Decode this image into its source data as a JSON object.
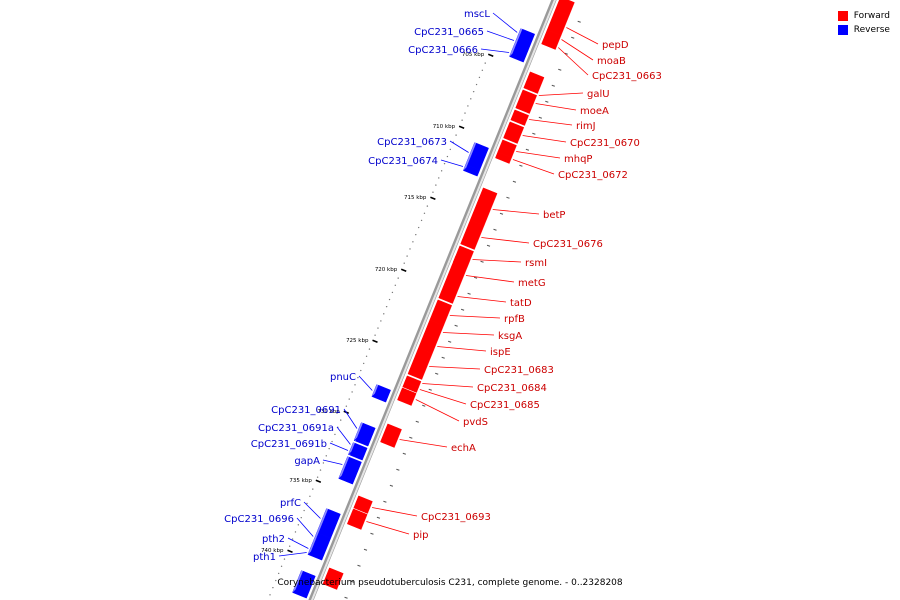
{
  "legend": {
    "forward": {
      "label": "Forward",
      "color": "#ff0000"
    },
    "reverse": {
      "label": "Reverse",
      "color": "#0000ff"
    }
  },
  "caption": "Corynebacterium pseudotuberculosis C231, complete genome. - 0..2328208",
  "ticks": [
    {
      "label": "705 kbp",
      "kbp": 705
    },
    {
      "label": "710 kbp",
      "kbp": 710
    },
    {
      "label": "715 kbp",
      "kbp": 715
    },
    {
      "label": "720 kbp",
      "kbp": 720
    },
    {
      "label": "725 kbp",
      "kbp": 725
    },
    {
      "label": "730 kbp",
      "kbp": 730
    },
    {
      "label": "735 kbp",
      "kbp": 735
    },
    {
      "label": "740 kbp",
      "kbp": 740
    }
  ],
  "forward_genes": [
    {
      "name": "pepD"
    },
    {
      "name": "moaB"
    },
    {
      "name": "CpC231_0663"
    },
    {
      "name": "galU"
    },
    {
      "name": "moeA"
    },
    {
      "name": "rimJ"
    },
    {
      "name": "CpC231_0670"
    },
    {
      "name": "mhqP"
    },
    {
      "name": "CpC231_0672"
    },
    {
      "name": "betP"
    },
    {
      "name": "CpC231_0676"
    },
    {
      "name": "rsmI"
    },
    {
      "name": "metG"
    },
    {
      "name": "tatD"
    },
    {
      "name": "rpfB"
    },
    {
      "name": "ksgA"
    },
    {
      "name": "ispE"
    },
    {
      "name": "CpC231_0683"
    },
    {
      "name": "CpC231_0684"
    },
    {
      "name": "CpC231_0685"
    },
    {
      "name": "pvdS"
    },
    {
      "name": "echA"
    },
    {
      "name": "CpC231_0693"
    },
    {
      "name": "pip"
    }
  ],
  "reverse_genes": [
    {
      "name": "mscL"
    },
    {
      "name": "CpC231_0665"
    },
    {
      "name": "CpC231_0666"
    },
    {
      "name": "CpC231_0673"
    },
    {
      "name": "CpC231_0674"
    },
    {
      "name": "pnuC"
    },
    {
      "name": "CpC231_0691"
    },
    {
      "name": "CpC231_0691a"
    },
    {
      "name": "CpC231_0691b"
    },
    {
      "name": "gapA"
    },
    {
      "name": "prfC"
    },
    {
      "name": "CpC231_0696"
    },
    {
      "name": "pth2"
    },
    {
      "name": "pth1"
    }
  ]
}
